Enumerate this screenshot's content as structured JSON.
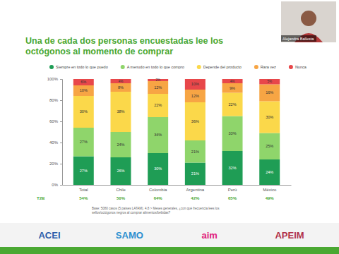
{
  "chart_data": {
    "type": "bar",
    "stacked": true,
    "data_labels": true,
    "grid": false,
    "legend": "top",
    "title": "Una de cada dos personas encuestadas lee los octógonos al momento de comprar",
    "categories": [
      "Total",
      "Chile",
      "Colombia",
      "Argentina",
      "Perú",
      "México"
    ],
    "series": [
      {
        "name": "Siempre en todo lo que puedo",
        "color": "#1f9d55",
        "values": [
          27,
          26,
          30,
          21,
          32,
          24
        ],
        "value_labels": [
          "27%",
          "26%",
          "30%",
          "21%",
          "32%",
          "24%"
        ]
      },
      {
        "name": "A menudo en todo lo que compro",
        "color": "#8fd56b",
        "values": [
          27,
          24,
          34,
          21,
          33,
          25
        ],
        "value_labels": [
          "27%",
          "24%",
          "34%",
          "21%",
          "33%",
          "25%"
        ]
      },
      {
        "name": "Depende del producto",
        "color": "#fbd84a",
        "values": [
          30,
          38,
          22,
          36,
          22,
          30
        ],
        "value_labels": [
          "30%",
          "38%",
          "22%",
          "36%",
          "22%",
          "30%"
        ]
      },
      {
        "name": "Rara vez",
        "color": "#f7a544",
        "values": [
          10,
          8,
          12,
          12,
          9,
          16
        ],
        "value_labels": [
          "10%",
          "8%",
          "12%",
          "12%",
          "9%",
          "16%"
        ]
      },
      {
        "name": "Nunca",
        "color": "#e8474a",
        "values": [
          6,
          4,
          2,
          10,
          4,
          5
        ],
        "value_labels": [
          "6%",
          "4%",
          "2%",
          "10%",
          "4%",
          "5%"
        ]
      }
    ],
    "ylim": [
      0,
      100
    ],
    "yticks": [
      {
        "value": 0,
        "label": "0%"
      },
      {
        "value": 20,
        "label": "20%"
      },
      {
        "value": 40,
        "label": "40%"
      },
      {
        "value": 60,
        "label": "60%"
      },
      {
        "value": 80,
        "label": "80%"
      },
      {
        "value": 100,
        "label": "100%"
      }
    ],
    "summary": {
      "label": "T2B",
      "values": [
        54,
        50,
        64,
        42,
        65,
        49
      ],
      "value_labels": [
        "54%",
        "50%",
        "64%",
        "42%",
        "65%",
        "49%"
      ]
    },
    "note": "Base: 5080 casos (5 países LATAM). 4.8 > Meses generales, ¿con qué frecuencia lees los sellos/octógonos negros al comprar alimentos/bebidas?"
  },
  "slide": {
    "presenter": "Alejandra Ballesta",
    "logos": [
      "ACEI",
      "SAMO",
      "aim",
      "APEIM"
    ]
  }
}
